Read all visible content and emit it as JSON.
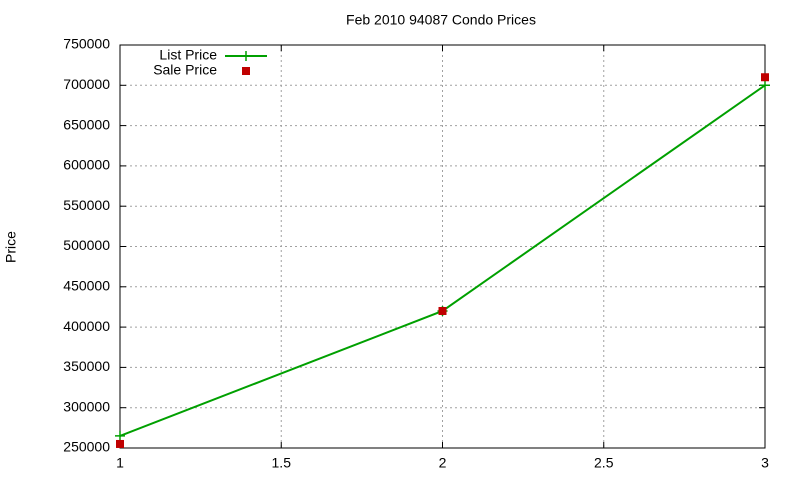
{
  "chart_data": {
    "type": "line",
    "title": "Feb 2010 94087 Condo Prices",
    "y_label": "Price",
    "series": [
      {
        "name": "List Price",
        "color": "#00a000",
        "line": true,
        "marker": "plus",
        "x": [
          1,
          2,
          3
        ],
        "values": [
          265000,
          420000,
          700000
        ]
      },
      {
        "name": "Sale Price",
        "color": "#c00000",
        "line": false,
        "marker": "square",
        "x": [
          1,
          2,
          3
        ],
        "values": [
          255000,
          420000,
          710000
        ]
      }
    ],
    "xlim": [
      1,
      3
    ],
    "xticks": [
      1,
      1.5,
      2,
      2.5,
      3
    ],
    "ylim": [
      250000,
      750000
    ],
    "yticks": [
      250000,
      300000,
      350000,
      400000,
      450000,
      500000,
      550000,
      600000,
      650000,
      700000,
      750000
    ],
    "grid": true,
    "legend": "top-left"
  }
}
